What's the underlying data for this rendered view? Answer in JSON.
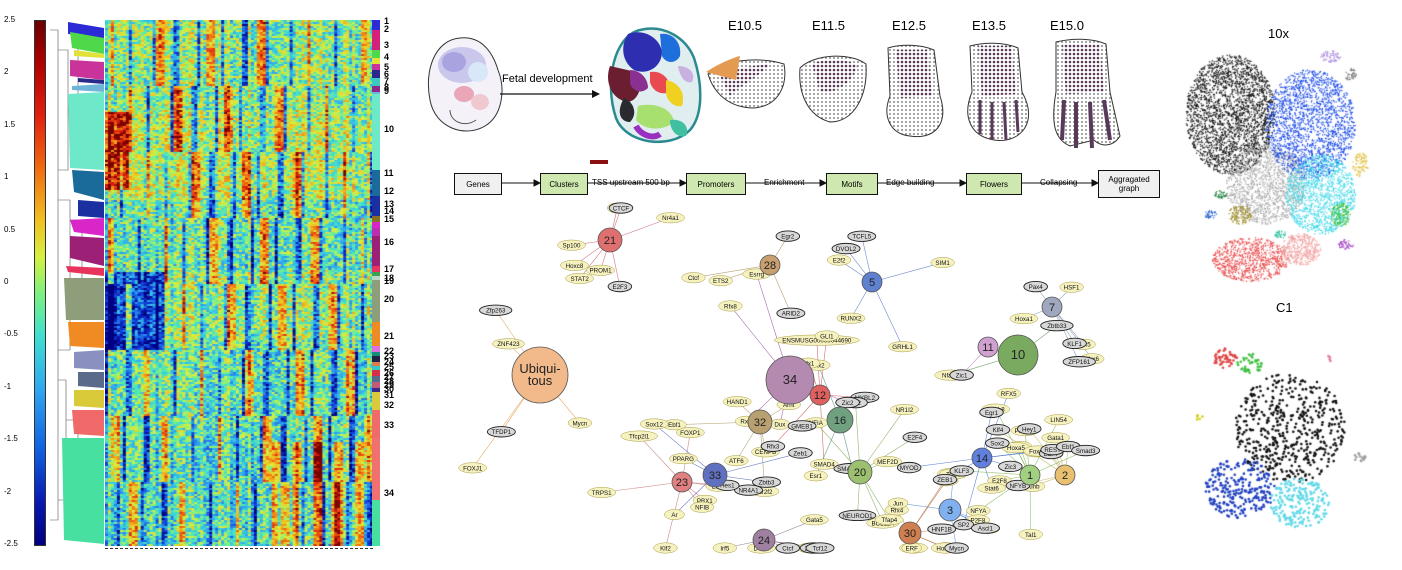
{
  "heatmap": {
    "scale_ticks": [
      "2.5",
      "2",
      "1.5",
      "1",
      "0.5",
      "0",
      "-0.5",
      "-1",
      "-1.5",
      "-2",
      "-2.5"
    ],
    "cluster_labels": [
      "1",
      "2",
      "3",
      "4",
      "5",
      "6",
      "7",
      "8",
      "9",
      "10",
      "11",
      "12",
      "13",
      "14",
      "15",
      "16",
      "17",
      "18",
      "19",
      "20",
      "21",
      "22",
      "23",
      "24",
      "25",
      "26",
      "27",
      "28",
      "29",
      "30",
      "31",
      "32",
      "33",
      "34"
    ],
    "cluster_colors": [
      "#2b2bd6",
      "#d4207a",
      "#4fd84a",
      "#e0e23a",
      "#c9339a",
      "#2a2a8a",
      "#3cc9c0",
      "#8b2a8b",
      "#6fb5d9",
      "#6de8c9",
      "#1b6b9a",
      "#1a2fa0",
      "#8b6f20",
      "#d826c9",
      "#b92fb0",
      "#9b2076",
      "#e8345c",
      "#3aa24f",
      "#b8d8c4",
      "#8e9d7a",
      "#f08a22",
      "#e070e0",
      "#1a8a7a",
      "#222244",
      "#d97a4f",
      "#36c6c6",
      "#d92e4a",
      "#5a6a8a",
      "#c45a7a",
      "#3a2a8a",
      "#d9ca3a",
      "#f06a6a",
      "#f07070",
      "#48e0a0"
    ]
  },
  "embryo": {
    "arrow_label": "Fetal development",
    "stages": [
      "E10.5",
      "E11.5",
      "E12.5",
      "E13.5",
      "E15.0"
    ]
  },
  "pipeline": {
    "steps": [
      "Genes",
      "Clusters",
      "Promoters",
      "Motifs",
      "Flowers",
      "Aggragated graph"
    ],
    "edges": [
      "",
      "TSS upstream 500 bp",
      "Enrichment",
      "Edge building",
      "Collapsing"
    ]
  },
  "network": {
    "hubs": [
      {
        "label": "Ubiqui- tous",
        "color": "#f2b98a"
      },
      {
        "label": "34",
        "color": "#b58ab0"
      },
      {
        "label": "21",
        "color": "#e07070"
      },
      {
        "label": "28",
        "color": "#c8a070"
      },
      {
        "label": "10",
        "color": "#7aaa60"
      },
      {
        "label": "16",
        "color": "#6fa080"
      },
      {
        "label": "32",
        "color": "#b8a070"
      },
      {
        "label": "33",
        "color": "#6070c0"
      },
      {
        "label": "20",
        "color": "#9cc070"
      },
      {
        "label": "5",
        "color": "#6080d0"
      },
      {
        "label": "7",
        "color": "#a0a8c0"
      },
      {
        "label": "11",
        "color": "#d0a0d0"
      },
      {
        "label": "12",
        "color": "#e06060"
      },
      {
        "label": "14",
        "color": "#6080e0"
      },
      {
        "label": "1",
        "color": "#a0d080"
      },
      {
        "label": "2",
        "color": "#e8c070"
      },
      {
        "label": "3",
        "color": "#80b0f0"
      },
      {
        "label": "23",
        "color": "#e08080"
      },
      {
        "label": "24",
        "color": "#a080a0"
      },
      {
        "label": "30",
        "color": "#d08050"
      }
    ],
    "genes_yellow": [
      "Lhx6",
      "E2f2",
      "NFYA",
      "FOXJ1",
      "Dux",
      "Duxbl",
      "P2F8",
      "PBX1",
      "E2F8",
      "Lhx8",
      "LIN54",
      "RFX5",
      "Rfx8",
      "Rfx2",
      "Rfx7",
      "Rfx4",
      "Rfx1",
      "CENPB",
      "Jun",
      "Mycn",
      "Ebf1",
      "ATF6",
      "Mnt",
      "Arnt",
      "Hoxa1",
      "Ar",
      "Ctcf",
      "Sp100",
      "Esrrb",
      "Mitf",
      "Nr2f2",
      "Nr1h2",
      "PPARA",
      "NFIA",
      "NFIB",
      "Hoxb8",
      "Rxrb",
      "Hoxa5",
      "BCL11A",
      "TRPS1",
      "MAF",
      "NR1I2",
      "ENSMUSG00000044690",
      "RUNX2",
      "Irf5",
      "Rora",
      "PPARG",
      "Gata1",
      "Nr4a1",
      "HAND1",
      "STAT2",
      "GLI1",
      "SMAD4",
      "PROM1",
      "Tfcp2l1",
      "Tfap4",
      "Hoxb5",
      "Hoxc8",
      "MEF2D",
      "Esr1",
      "GRHL1",
      "Junb",
      "Tal1",
      "ZNF423",
      "SIM1",
      "Pax5",
      "FOXP1",
      "ELF1",
      "ETS2",
      "Elk4",
      "Tcfe3",
      "Sox12",
      "ERF",
      "Foxn1",
      "HSF1",
      "Gata5",
      "Esrrg",
      "Nfatc1",
      "Stat6",
      "Klf2"
    ],
    "genes_dark": [
      "TFDP1",
      "SMARCC2",
      "GMEB1",
      "E2F7",
      "E2F4",
      "ARID2",
      "DVOL2",
      "Zbtb3",
      "REST",
      "Zbtb33",
      "ZFP161",
      "Ebf1",
      "Mycn",
      "NEUROD1",
      "MYBL2",
      "Zfp263",
      "HNF1B",
      "Egr1",
      "Egr2",
      "NR4A1",
      "NFYB",
      "Pax4",
      "Ctcf",
      "Zeb1",
      "Rfx3",
      "Sox2",
      "KLF3",
      "KLF1",
      "Hey1",
      "Hes1",
      "CTCF",
      "Klf2",
      "E2F3",
      "SP2",
      "ZNF24",
      "ZEB1",
      "TCFL5",
      "Klf4",
      "Zic1",
      "Zic2",
      "Zic3",
      "MYOD",
      "Tcf12",
      "Ascl1",
      "Smad3"
    ]
  },
  "tsne": {
    "top_title": "10x",
    "bottom_title": "C1"
  }
}
